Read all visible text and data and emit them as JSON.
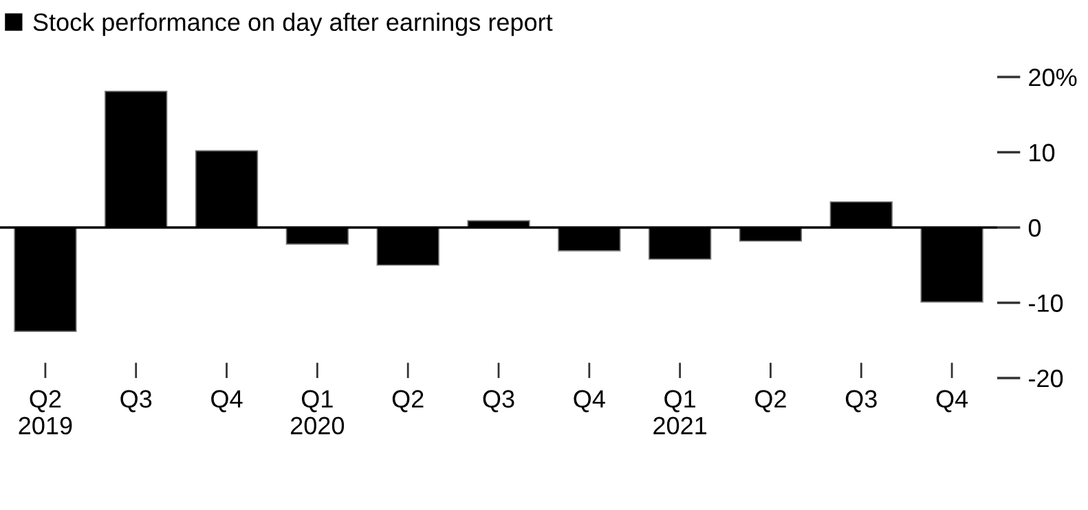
{
  "chart_data": {
    "type": "bar",
    "categories": [
      "Q2\n2019",
      "Q3",
      "Q4",
      "Q1\n2020",
      "Q2",
      "Q3",
      "Q4",
      "Q1\n2021",
      "Q2",
      "Q3",
      "Q4"
    ],
    "series": [
      {
        "name": "Stock performance on day after earnings report",
        "color": "#000000",
        "values": [
          -13.8,
          18.1,
          10.2,
          -2.2,
          -5.0,
          0.9,
          -3.1,
          -4.2,
          -1.8,
          3.4,
          -9.9
        ]
      }
    ],
    "ylim": [
      -20,
      20
    ],
    "yticks": [
      {
        "value": 20,
        "label": "20%"
      },
      10,
      0,
      -10,
      -20
    ],
    "ref_lines": [
      {
        "axis": "y",
        "value": 0,
        "color": "#000000"
      }
    ],
    "legend": "top left",
    "grid": false
  }
}
